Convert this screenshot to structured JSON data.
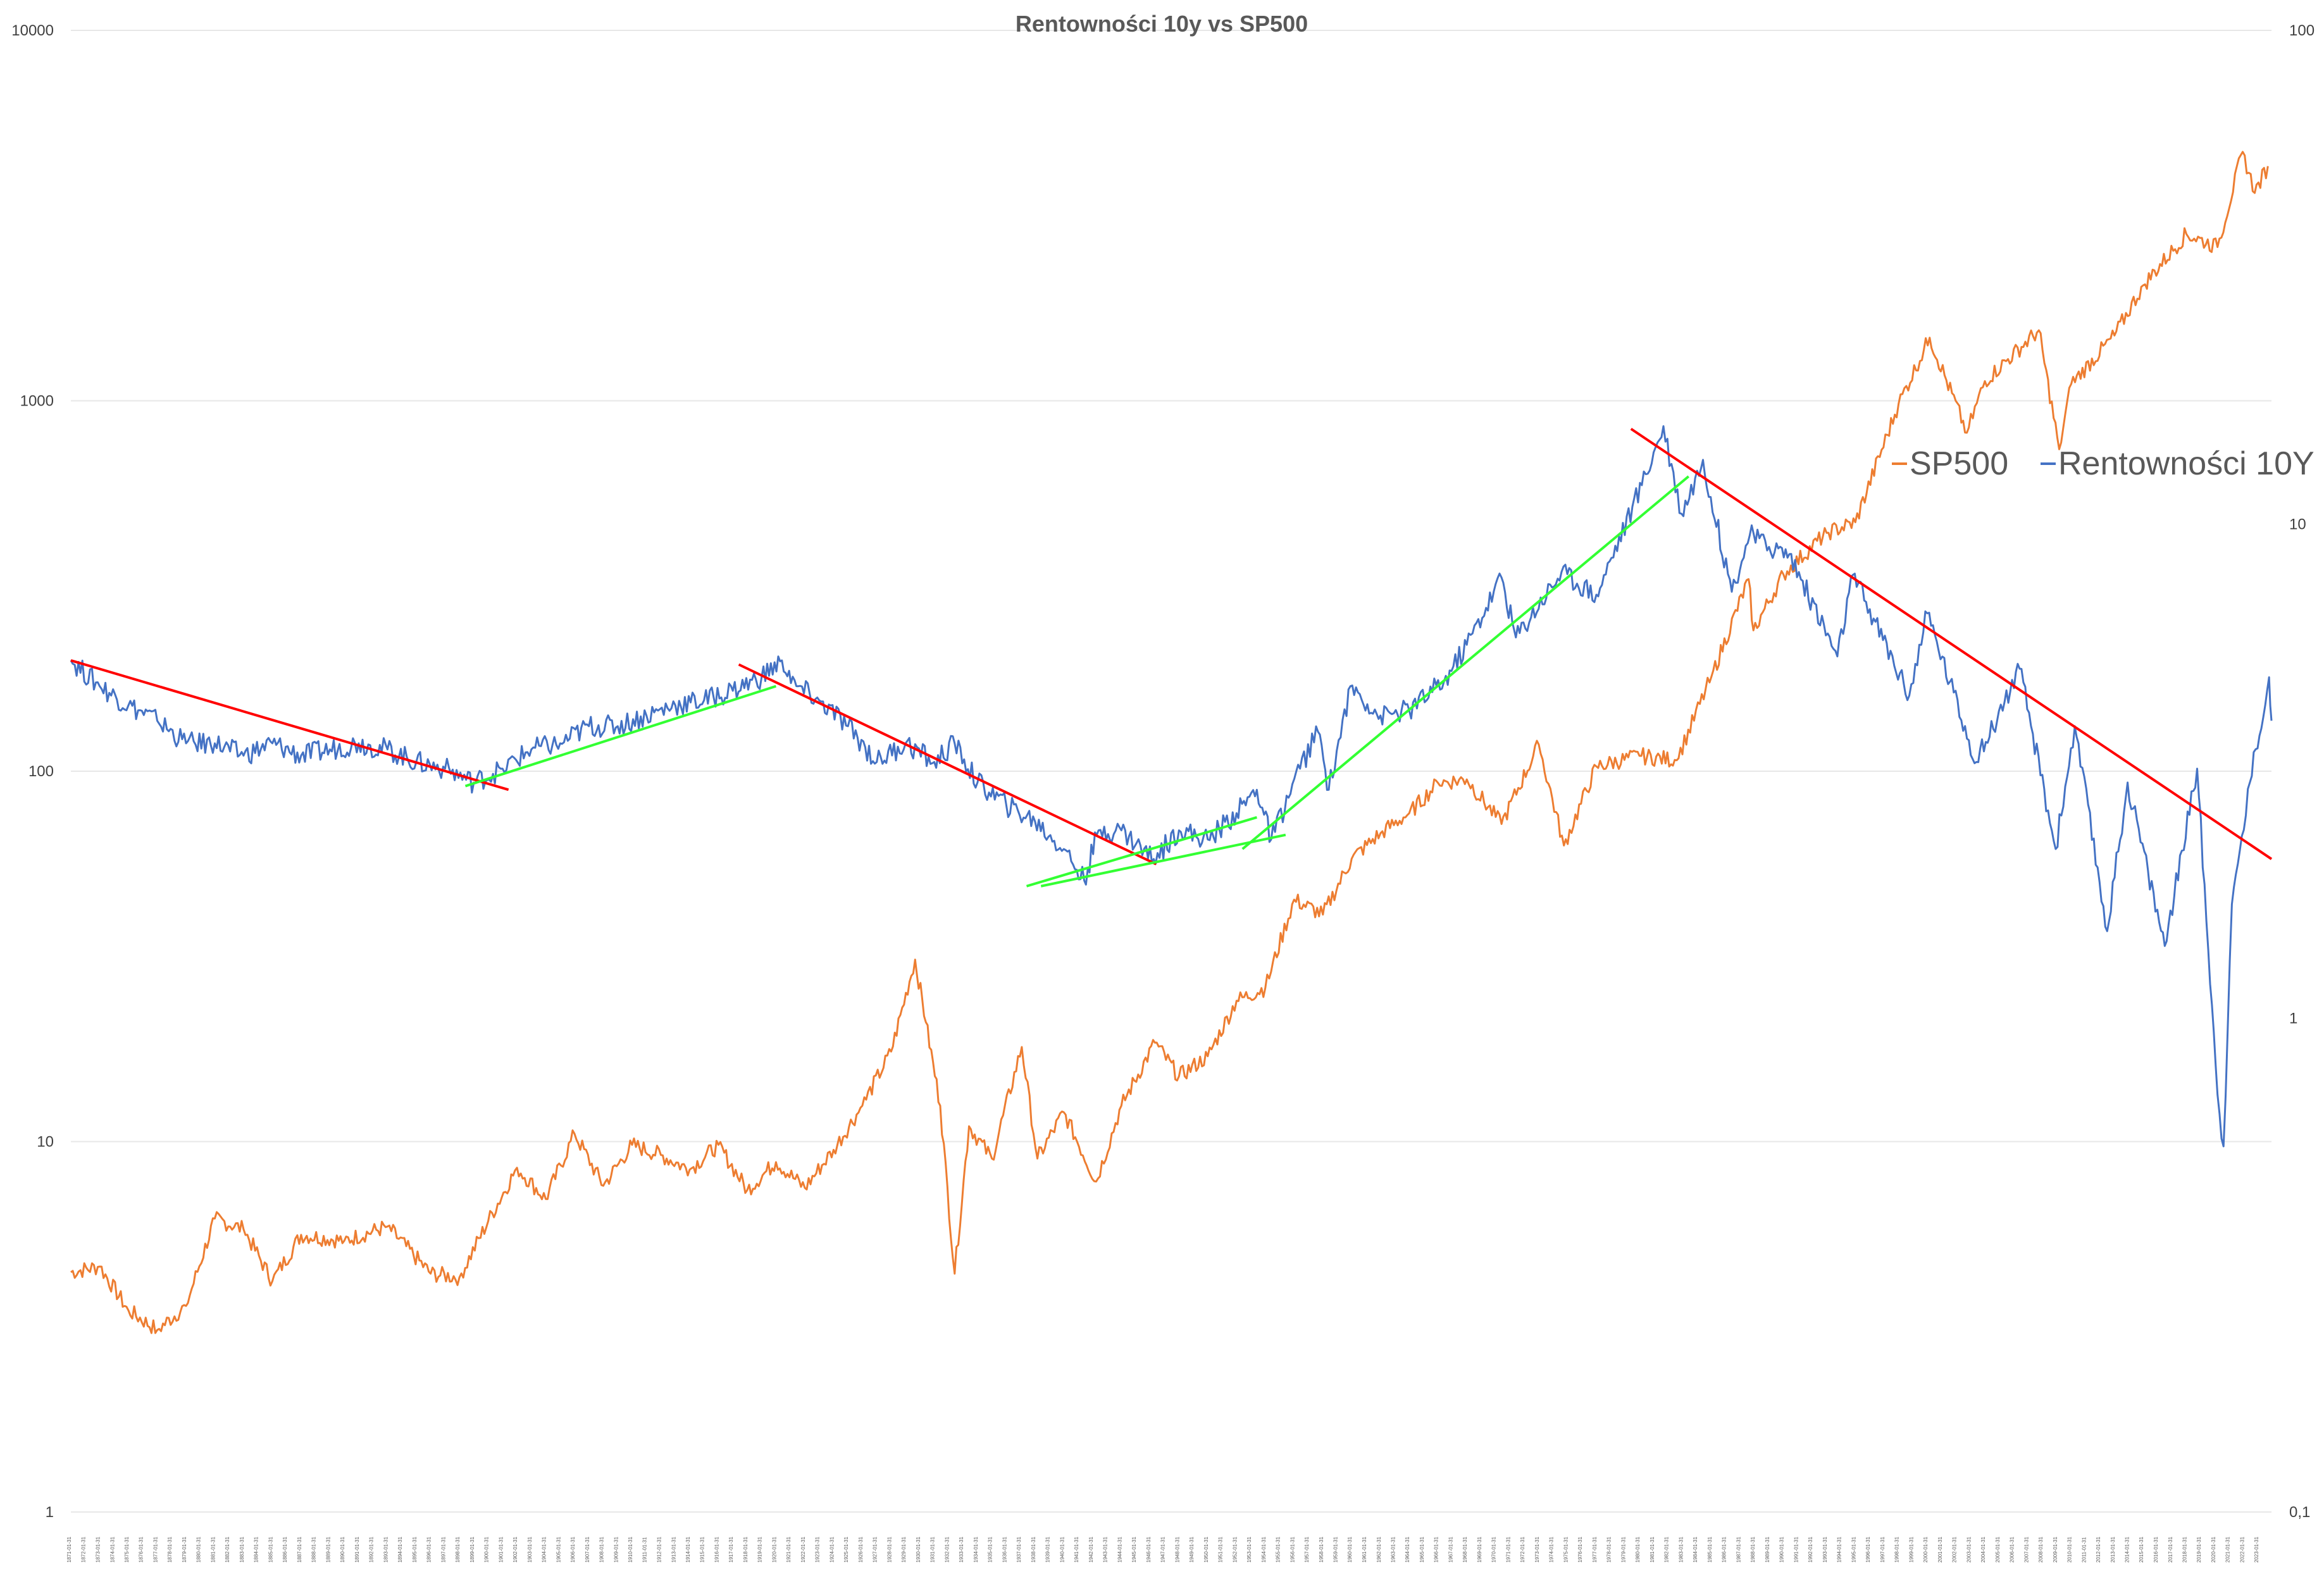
{
  "chart_data": {
    "type": "line",
    "title": "Rentowności 10y vs SP500",
    "legend_position": "right",
    "grid": true,
    "y_left": {
      "scale": "log",
      "range": [
        1,
        10000
      ],
      "ticks": [
        "1",
        "10",
        "100",
        "1000",
        "10000"
      ]
    },
    "y_right": {
      "scale": "log",
      "range": [
        0.1,
        100
      ],
      "ticks": [
        "0,1",
        "1",
        "10",
        "100"
      ]
    },
    "x_axis": {
      "type": "date",
      "range": [
        "1871-01-31",
        "2023-12-31"
      ]
    },
    "series": [
      {
        "name": "SP500",
        "color": "#ED7D31",
        "axis": "left",
        "points": [
          [
            "1871-01-31",
            4.44
          ],
          [
            "1873-01-31",
            4.6
          ],
          [
            "1875-01-31",
            3.5
          ],
          [
            "1877-01-31",
            3.1
          ],
          [
            "1879-01-31",
            3.6
          ],
          [
            "1881-01-31",
            6.2
          ],
          [
            "1883-01-31",
            5.8
          ],
          [
            "1885-01-31",
            4.2
          ],
          [
            "1887-01-31",
            5.6
          ],
          [
            "1890-01-31",
            5.4
          ],
          [
            "1893-01-31",
            5.9
          ],
          [
            "1896-01-31",
            4.4
          ],
          [
            "1898-01-31",
            4.3
          ],
          [
            "1900-01-31",
            6.1
          ],
          [
            "1902-01-31",
            8.5
          ],
          [
            "1904-01-31",
            7.0
          ],
          [
            "1906-01-31",
            10.5
          ],
          [
            "1908-01-31",
            7.6
          ],
          [
            "1910-01-31",
            9.8
          ],
          [
            "1912-01-31",
            9.2
          ],
          [
            "1914-01-31",
            8.4
          ],
          [
            "1916-01-31",
            9.8
          ],
          [
            "1918-01-31",
            7.4
          ],
          [
            "1920-01-31",
            8.8
          ],
          [
            "1922-01-31",
            7.5
          ],
          [
            "1924-01-31",
            9.5
          ],
          [
            "1926-01-31",
            12.5
          ],
          [
            "1928-01-31",
            17.5
          ],
          [
            "1929-09-30",
            31.0
          ],
          [
            "1930-06-30",
            21.0
          ],
          [
            "1931-06-30",
            12.5
          ],
          [
            "1932-06-30",
            4.4
          ],
          [
            "1933-06-30",
            11.0
          ],
          [
            "1935-01-31",
            9.0
          ],
          [
            "1937-02-28",
            18.0
          ],
          [
            "1938-03-31",
            9.0
          ],
          [
            "1940-01-31",
            12.0
          ],
          [
            "1942-04-30",
            7.8
          ],
          [
            "1944-01-31",
            12.5
          ],
          [
            "1946-05-31",
            18.5
          ],
          [
            "1948-01-31",
            15.0
          ],
          [
            "1950-01-31",
            17.0
          ],
          [
            "1952-01-31",
            24.0
          ],
          [
            "1954-01-31",
            26.0
          ],
          [
            "1956-01-31",
            45.0
          ],
          [
            "1958-01-31",
            41.0
          ],
          [
            "1960-01-31",
            58.0
          ],
          [
            "1962-01-31",
            68.0
          ],
          [
            "1964-01-31",
            77.0
          ],
          [
            "1966-01-31",
            93.0
          ],
          [
            "1968-01-31",
            95.0
          ],
          [
            "1970-06-30",
            72.0
          ],
          [
            "1973-01-31",
            118.0
          ],
          [
            "1974-10-31",
            63.0
          ],
          [
            "1977-01-31",
            103.0
          ],
          [
            "1980-01-31",
            110.0
          ],
          [
            "1982-08-31",
            107.0
          ],
          [
            "1985-01-31",
            180.0
          ],
          [
            "1987-08-31",
            330.0
          ],
          [
            "1987-12-31",
            240.0
          ],
          [
            "1990-01-31",
            340.0
          ],
          [
            "1993-01-31",
            440.0
          ],
          [
            "1995-01-31",
            470.0
          ],
          [
            "1998-01-31",
            980.0
          ],
          [
            "2000-03-31",
            1480.0
          ],
          [
            "2002-10-31",
            820.0
          ],
          [
            "2004-01-31",
            1130.0
          ],
          [
            "2007-10-31",
            1550.0
          ],
          [
            "2009-03-31",
            740.0
          ],
          [
            "2010-01-31",
            1110.0
          ],
          [
            "2013-01-31",
            1500.0
          ],
          [
            "2015-01-31",
            2050.0
          ],
          [
            "2018-01-31",
            2820.0
          ],
          [
            "2020-03-31",
            2600.0
          ],
          [
            "2021-12-31",
            4700.0
          ],
          [
            "2022-10-31",
            3640.0
          ],
          [
            "2023-09-30",
            4300.0
          ]
        ]
      },
      {
        "name": "Rentowności 10Y",
        "color": "#4472C4",
        "axis": "right",
        "points": [
          [
            "1871-01-31",
            5.3
          ],
          [
            "1873-01-31",
            4.7
          ],
          [
            "1875-01-31",
            4.3
          ],
          [
            "1877-01-31",
            4.0
          ],
          [
            "1879-01-31",
            3.6
          ],
          [
            "1881-01-31",
            3.6
          ],
          [
            "1883-01-31",
            3.4
          ],
          [
            "1885-01-31",
            3.6
          ],
          [
            "1887-01-31",
            3.4
          ],
          [
            "1889-01-31",
            3.5
          ],
          [
            "1891-01-31",
            3.6
          ],
          [
            "1893-01-31",
            3.5
          ],
          [
            "1895-01-31",
            3.3
          ],
          [
            "1897-01-31",
            3.2
          ],
          [
            "1899-01-31",
            3.0
          ],
          [
            "1901-01-31",
            3.2
          ],
          [
            "1903-01-31",
            3.5
          ],
          [
            "1905-01-31",
            3.6
          ],
          [
            "1907-01-31",
            3.9
          ],
          [
            "1909-01-31",
            3.9
          ],
          [
            "1911-01-31",
            4.1
          ],
          [
            "1913-01-31",
            4.3
          ],
          [
            "1915-01-31",
            4.4
          ],
          [
            "1917-01-31",
            4.6
          ],
          [
            "1919-01-31",
            4.9
          ],
          [
            "1920-06-30",
            5.3
          ],
          [
            "1921-06-30",
            4.7
          ],
          [
            "1923-01-31",
            4.4
          ],
          [
            "1925-01-31",
            3.9
          ],
          [
            "1927-01-31",
            3.3
          ],
          [
            "1929-01-31",
            3.6
          ],
          [
            "1931-01-31",
            3.3
          ],
          [
            "1932-06-30",
            3.6
          ],
          [
            "1934-01-31",
            3.0
          ],
          [
            "1936-01-31",
            2.7
          ],
          [
            "1938-01-31",
            2.5
          ],
          [
            "1940-01-31",
            2.2
          ],
          [
            "1941-06-30",
            1.9
          ],
          [
            "1942-06-30",
            2.4
          ],
          [
            "1944-01-31",
            2.4
          ],
          [
            "1946-04-30",
            2.1
          ],
          [
            "1948-01-31",
            2.4
          ],
          [
            "1950-01-31",
            2.3
          ],
          [
            "1952-01-31",
            2.6
          ],
          [
            "1953-06-30",
            2.9
          ],
          [
            "1954-06-30",
            2.3
          ],
          [
            "1956-06-30",
            3.2
          ],
          [
            "1957-09-30",
            3.8
          ],
          [
            "1958-06-30",
            2.9
          ],
          [
            "1959-12-31",
            4.7
          ],
          [
            "1962-01-31",
            4.1
          ],
          [
            "1964-01-31",
            4.2
          ],
          [
            "1966-06-30",
            4.8
          ],
          [
            "1968-01-31",
            5.7
          ],
          [
            "1970-06-30",
            7.8
          ],
          [
            "1971-06-30",
            5.9
          ],
          [
            "1974-08-31",
            8.0
          ],
          [
            "1977-01-31",
            7.2
          ],
          [
            "1980-03-31",
            12.0
          ],
          [
            "1981-09-30",
            15.8
          ],
          [
            "1982-12-31",
            10.5
          ],
          [
            "1984-06-30",
            13.5
          ],
          [
            "1986-06-30",
            7.3
          ],
          [
            "1987-09-30",
            9.5
          ],
          [
            "1989-01-31",
            9.0
          ],
          [
            "1990-06-30",
            8.7
          ],
          [
            "1993-10-31",
            5.4
          ],
          [
            "1994-11-30",
            7.9
          ],
          [
            "1998-10-31",
            4.5
          ],
          [
            "2000-01-31",
            6.6
          ],
          [
            "2003-06-30",
            3.3
          ],
          [
            "2006-06-30",
            5.1
          ],
          [
            "2008-12-31",
            2.2
          ],
          [
            "2010-04-30",
            3.9
          ],
          [
            "2012-07-31",
            1.5
          ],
          [
            "2013-12-31",
            3.0
          ],
          [
            "2016-07-31",
            1.4
          ],
          [
            "2018-10-31",
            3.2
          ],
          [
            "2020-03-31",
            0.7
          ],
          [
            "2020-08-31",
            0.55
          ],
          [
            "2021-03-31",
            1.7
          ],
          [
            "2022-06-30",
            3.0
          ],
          [
            "2023-10-31",
            4.9
          ],
          [
            "2023-12-31",
            4.0
          ]
        ]
      }
    ],
    "trendlines": [
      {
        "color": "#FF0000",
        "from": [
          "1871-01-31",
          5.3
        ],
        "to": [
          "1901-06-30",
          2.9
        ]
      },
      {
        "color": "#33FF33",
        "from": [
          "1898-06-30",
          2.95
        ],
        "to": [
          "1920-01-31",
          4.7
        ]
      },
      {
        "color": "#FF0000",
        "from": [
          "1917-06-30",
          5.2
        ],
        "to": [
          "1946-06-30",
          2.05
        ]
      },
      {
        "color": "#33FF33",
        "from": [
          "1937-06-30",
          1.85
        ],
        "to": [
          "1953-06-30",
          2.55
        ]
      },
      {
        "color": "#33FF33",
        "from": [
          "1938-06-30",
          1.85
        ],
        "to": [
          "1955-06-30",
          2.35
        ]
      },
      {
        "color": "#33FF33",
        "from": [
          "1952-06-30",
          2.2
        ],
        "to": [
          "1983-06-30",
          12.5
        ]
      },
      {
        "color": "#FF0000",
        "from": [
          "1979-06-30",
          15.6
        ],
        "to": [
          "2023-12-31",
          2.1
        ]
      }
    ]
  }
}
